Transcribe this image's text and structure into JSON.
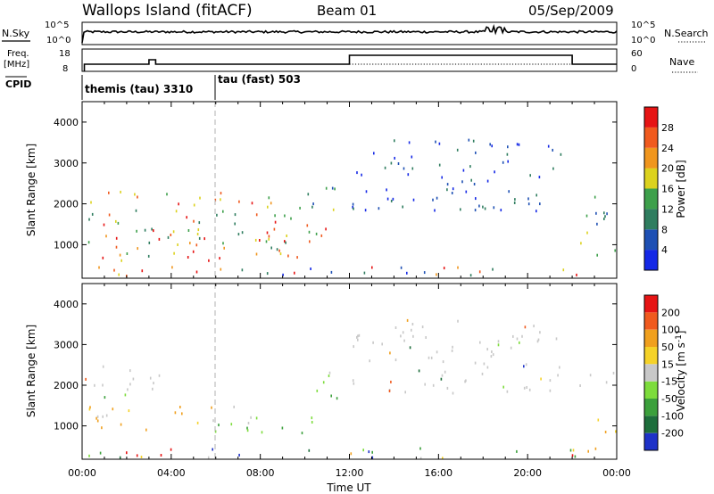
{
  "header": {
    "station": "Wallops Island (fitACF)",
    "beam": "Beam 01",
    "date": "05/Sep/2009"
  },
  "top_panels": {
    "nsky_label": "N.Sky",
    "nsearch_label": "N.Search",
    "freq_label_1": "Freq.",
    "freq_label_2": "[MHz]",
    "nave_label": "Nave",
    "cpid_label": "CPID",
    "noise_ticks_left": [
      "10^5",
      "10^0"
    ],
    "noise_ticks_right": [
      "10^5",
      "10^0"
    ],
    "freq_ticks": [
      "18",
      "8"
    ],
    "nave_ticks": [
      "60",
      "0"
    ],
    "cpid_segments": [
      {
        "label": "themis (tau) 3310",
        "start_hr": 0.1,
        "end_hr": 6.0
      },
      {
        "label": "tau (fast) 503",
        "start_hr": 6.0,
        "end_hr": 24.0
      }
    ]
  },
  "chart_data": [
    {
      "type": "heatmap",
      "name": "power",
      "ylabel": "Slant Range [km]",
      "xlabel": "Time UT",
      "xlim": [
        0,
        24
      ],
      "ylim": [
        180,
        4500
      ],
      "yticks": [
        1000,
        2000,
        3000,
        4000
      ],
      "xticks": [
        "00:00",
        "04:00",
        "08:00",
        "12:00",
        "16:00",
        "20:00",
        "00:00"
      ],
      "colorbar": {
        "label": "Power [dB]",
        "ticks": [
          "4",
          "8",
          "12",
          "16",
          "20",
          "24",
          "28"
        ],
        "colors": [
          "#1428e6",
          "#1e50b4",
          "#2f7d5f",
          "#3ea04b",
          "#dcd21e",
          "#f0961e",
          "#f05a1e",
          "#e61414"
        ]
      },
      "regions": [
        {
          "t0": 0.1,
          "t1": 10.5,
          "r0": 600,
          "r1": 2300,
          "level": "high"
        },
        {
          "t0": 3.0,
          "t1": 11.0,
          "r0": 900,
          "r1": 1400,
          "level": "high"
        },
        {
          "t0": 0.1,
          "t1": 24.0,
          "r0": 200,
          "r1": 450,
          "level": "mixed"
        },
        {
          "t0": 10.3,
          "t1": 11.5,
          "r0": 1400,
          "r1": 2500,
          "level": "mid"
        },
        {
          "t0": 12.0,
          "t1": 21.5,
          "r0": 1800,
          "r1": 3600,
          "level": "low"
        },
        {
          "t0": 22.3,
          "t1": 24.0,
          "r0": 700,
          "r1": 2300,
          "level": "mid"
        }
      ]
    },
    {
      "type": "heatmap",
      "name": "velocity",
      "ylabel": "Slant Range [km]",
      "xlabel": "Time UT",
      "xlim": [
        0,
        24
      ],
      "ylim": [
        180,
        4500
      ],
      "yticks": [
        1000,
        2000,
        3000,
        4000
      ],
      "xticks": [
        "00:00",
        "04:00",
        "08:00",
        "12:00",
        "16:00",
        "20:00",
        "00:00"
      ],
      "colorbar": {
        "label": "Velocity [m s^-1]",
        "ticks": [
          "200",
          "100",
          "50",
          "15",
          "-15",
          "-50",
          "-100",
          "-200"
        ],
        "colors": [
          "#1e32c8",
          "#1e6e3c",
          "#3ca03c",
          "#7ddc3c",
          "#c8c8c8",
          "#f5d228",
          "#f0a01e",
          "#f05a1e",
          "#e61414"
        ]
      },
      "regions": [
        {
          "t0": 0.1,
          "t1": 4.0,
          "r0": 1700,
          "r1": 2500,
          "level": "grey"
        },
        {
          "t0": 0.1,
          "t1": 7.0,
          "r0": 900,
          "r1": 1500,
          "level": "orange"
        },
        {
          "t0": 5.0,
          "t1": 10.5,
          "r0": 800,
          "r1": 1300,
          "level": "green"
        },
        {
          "t0": 0.1,
          "t1": 24.0,
          "r0": 200,
          "r1": 450,
          "level": "mixed"
        },
        {
          "t0": 10.3,
          "t1": 11.5,
          "r0": 1400,
          "r1": 2500,
          "level": "green"
        },
        {
          "t0": 12.0,
          "t1": 21.5,
          "r0": 1800,
          "r1": 3600,
          "level": "grey"
        },
        {
          "t0": 22.3,
          "t1": 24.0,
          "r0": 1900,
          "r1": 2400,
          "level": "grey"
        },
        {
          "t0": 23.0,
          "t1": 24.0,
          "r0": 700,
          "r1": 1300,
          "level": "orange"
        }
      ]
    }
  ]
}
